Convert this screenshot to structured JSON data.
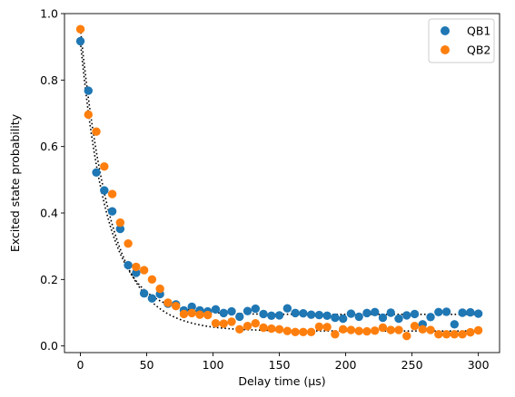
{
  "chart_data": {
    "type": "scatter",
    "title": "",
    "xlabel": "Delay time (µs)",
    "ylabel": "Excited state probability",
    "xlim": [
      -12,
      316
    ],
    "ylim": [
      -0.02,
      1.0
    ],
    "xticks": [
      0,
      50,
      100,
      150,
      200,
      250,
      300
    ],
    "yticks": [
      0.0,
      0.2,
      0.4,
      0.6,
      0.8,
      1.0
    ],
    "xtick_labels": [
      "0",
      "50",
      "100",
      "150",
      "200",
      "250",
      "300"
    ],
    "ytick_labels": [
      "0.0",
      "0.2",
      "0.4",
      "0.6",
      "0.8",
      "1.0"
    ],
    "grid": false,
    "legend": {
      "position": "top-right",
      "entries": [
        "QB1",
        "QB2"
      ]
    },
    "series": [
      {
        "name": "QB1",
        "color": "#1f77b4",
        "marker": "circle",
        "x": [
          0,
          6,
          12,
          18,
          24,
          30,
          36,
          42,
          48,
          54,
          60,
          66,
          72,
          78,
          84,
          90,
          96,
          102,
          108,
          114,
          120,
          126,
          132,
          138,
          144,
          150,
          156,
          162,
          168,
          174,
          180,
          186,
          192,
          198,
          204,
          210,
          216,
          222,
          228,
          234,
          240,
          246,
          252,
          258,
          264,
          270,
          276,
          282,
          288,
          294,
          300
        ],
        "y": [
          0.917,
          0.768,
          0.522,
          0.468,
          0.405,
          0.352,
          0.243,
          0.22,
          0.158,
          0.143,
          0.156,
          0.127,
          0.125,
          0.107,
          0.118,
          0.107,
          0.104,
          0.11,
          0.099,
          0.104,
          0.088,
          0.105,
          0.112,
          0.096,
          0.091,
          0.092,
          0.113,
          0.099,
          0.098,
          0.094,
          0.093,
          0.091,
          0.085,
          0.082,
          0.097,
          0.088,
          0.099,
          0.102,
          0.085,
          0.1,
          0.082,
          0.092,
          0.096,
          0.065,
          0.087,
          0.102,
          0.103,
          0.065,
          0.1,
          0.101,
          0.097
        ]
      },
      {
        "name": "QB2",
        "color": "#ff7f0e",
        "marker": "circle",
        "x": [
          0,
          6,
          12,
          18,
          24,
          30,
          36,
          42,
          48,
          54,
          60,
          66,
          72,
          78,
          84,
          90,
          96,
          102,
          108,
          114,
          120,
          126,
          132,
          138,
          144,
          150,
          156,
          162,
          168,
          174,
          180,
          186,
          192,
          198,
          204,
          210,
          216,
          222,
          228,
          234,
          240,
          246,
          252,
          258,
          264,
          270,
          276,
          282,
          288,
          294,
          300
        ],
        "y": [
          0.953,
          0.696,
          0.645,
          0.54,
          0.457,
          0.371,
          0.308,
          0.238,
          0.228,
          0.2,
          0.172,
          0.13,
          0.12,
          0.096,
          0.099,
          0.094,
          0.093,
          0.068,
          0.067,
          0.073,
          0.05,
          0.06,
          0.068,
          0.055,
          0.052,
          0.05,
          0.045,
          0.042,
          0.042,
          0.042,
          0.058,
          0.057,
          0.035,
          0.05,
          0.048,
          0.045,
          0.044,
          0.046,
          0.055,
          0.048,
          0.048,
          0.03,
          0.06,
          0.05,
          0.048,
          0.035,
          0.035,
          0.035,
          0.035,
          0.041,
          0.047
        ]
      }
    ],
    "fits": [
      {
        "style": "dotted",
        "color": "#000000",
        "amplitude": 0.82,
        "tau": 20,
        "offset": 0.095
      },
      {
        "style": "dotted",
        "color": "#000000",
        "amplitude": 0.91,
        "tau": 23,
        "offset": 0.045
      }
    ]
  }
}
